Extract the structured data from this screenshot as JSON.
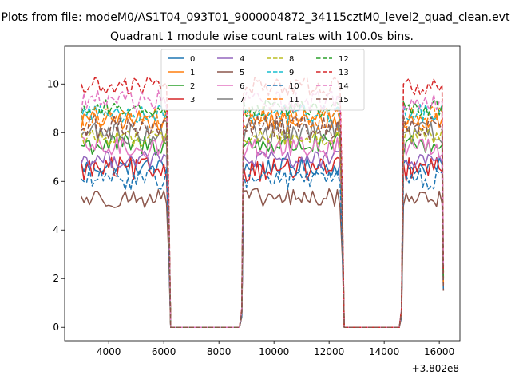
{
  "chart_data": {
    "type": "line",
    "suptitle": "Plots from file: modeM0/AS1T04_093T01_9000004872_34115cztM0_level2_quad_clean.evt",
    "title": "Quadrant 1 module wise count rates with 100.0s bins.",
    "xlabel": "",
    "ylabel": "",
    "x_offset_label": "+3.802e8",
    "xlim": [
      2400,
      16750
    ],
    "ylim": [
      -0.55,
      11.55
    ],
    "x_ticks": [
      4000,
      6000,
      8000,
      10000,
      12000,
      14000,
      16000
    ],
    "x_tick_labels": [
      "4000",
      "6000",
      "8000",
      "10000",
      "12000",
      "14000",
      "16000"
    ],
    "y_ticks": [
      0,
      2,
      4,
      6,
      8,
      10
    ],
    "y_tick_labels": [
      "0",
      "2",
      "4",
      "6",
      "8",
      "10"
    ],
    "grid": false,
    "legend_position": "top-center",
    "legend_columns": 4,
    "bin_seconds": 100,
    "time_profile": {
      "on_intervals": [
        [
          3000,
          6100
        ],
        [
          8900,
          12400
        ],
        [
          14700,
          16100
        ]
      ],
      "zero_intervals": [
        [
          6250,
          8750
        ],
        [
          12550,
          14550
        ]
      ],
      "ramps": [
        [
          6100,
          6250
        ],
        [
          8750,
          8900
        ],
        [
          12400,
          12550
        ],
        [
          14550,
          14700
        ],
        [
          16100,
          16150
        ]
      ]
    },
    "series": [
      {
        "name": "0",
        "color": "#1f77b4",
        "style": "solid",
        "level": 6.6
      },
      {
        "name": "1",
        "color": "#ff7f0e",
        "style": "solid",
        "level": 8.5
      },
      {
        "name": "2",
        "color": "#2ca02c",
        "style": "solid",
        "level": 7.5
      },
      {
        "name": "3",
        "color": "#d62728",
        "style": "solid",
        "level": 6.5
      },
      {
        "name": "4",
        "color": "#9467bd",
        "style": "solid",
        "level": 6.9
      },
      {
        "name": "5",
        "color": "#8c564b",
        "style": "solid",
        "level": 5.3
      },
      {
        "name": "6",
        "color": "#e377c2",
        "style": "solid",
        "level": 7.4
      },
      {
        "name": "7",
        "color": "#7f7f7f",
        "style": "solid",
        "level": 8.0
      },
      {
        "name": "8",
        "color": "#bcbd22",
        "style": "dashed",
        "level": 7.8
      },
      {
        "name": "9",
        "color": "#17becf",
        "style": "dashed",
        "level": 8.8
      },
      {
        "name": "10",
        "color": "#1f77b4",
        "style": "dashed",
        "level": 6.1
      },
      {
        "name": "11",
        "color": "#ff7f0e",
        "style": "dashed",
        "level": 8.6
      },
      {
        "name": "12",
        "color": "#2ca02c",
        "style": "dashed",
        "level": 9.0
      },
      {
        "name": "13",
        "color": "#d62728",
        "style": "dashed",
        "level": 9.9
      },
      {
        "name": "14",
        "color": "#e377c2",
        "style": "dashed",
        "level": 9.3
      },
      {
        "name": "15",
        "color": "#8c564b",
        "style": "dashed",
        "level": 8.2
      }
    ]
  }
}
